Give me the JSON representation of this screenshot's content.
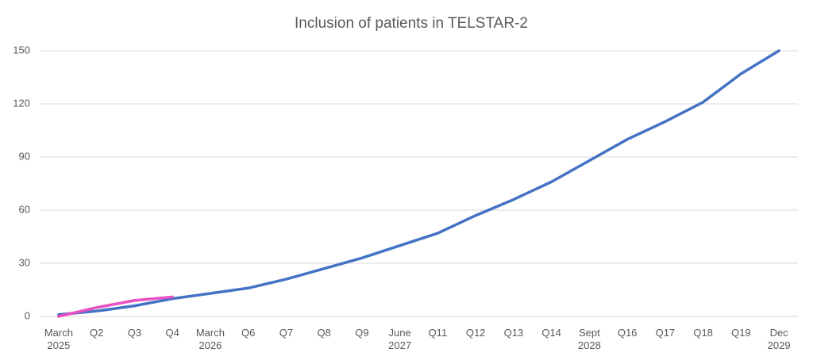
{
  "chart_data": {
    "type": "line",
    "title": "Inclusion of patients in TELSTAR-2",
    "categories": [
      "March 2025",
      "Q2",
      "Q3",
      "Q4",
      "March 2026",
      "Q6",
      "Q7",
      "Q8",
      "Q9",
      "June 2027",
      "Q11",
      "Q12",
      "Q13",
      "Q14",
      "Sept 2028",
      "Q16",
      "Q17",
      "Q18",
      "Q19",
      "Dec 2029"
    ],
    "series": [
      {
        "color": "#4472c4",
        "values": [
          1,
          3,
          6,
          10,
          13,
          16,
          21,
          27,
          33,
          40,
          47,
          57,
          66,
          76,
          88,
          100,
          110,
          121,
          137,
          150
        ]
      },
      {
        "color": "#e84fc0",
        "values": [
          0,
          5,
          9,
          11,
          null,
          null,
          null,
          null,
          null,
          null,
          null,
          null,
          null,
          null,
          null,
          null,
          null,
          null,
          null,
          null
        ]
      }
    ],
    "ylim": [
      0,
      150
    ],
    "yticks": [
      0,
      30,
      60,
      90,
      120,
      150
    ],
    "grid": true
  }
}
